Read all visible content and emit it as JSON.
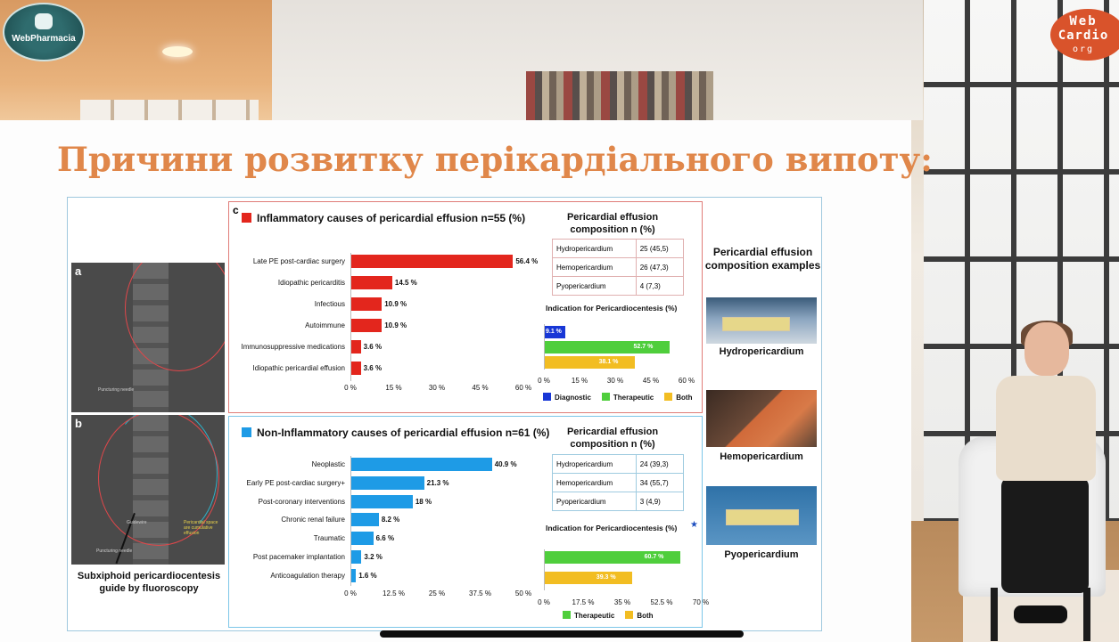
{
  "logos": {
    "left": "WebPharmacia",
    "right_line1": "Web",
    "right_line2": "Cardio",
    "right_line3": "org"
  },
  "slide": {
    "title": "Причини розвитку перікардіального випоту:",
    "xray": {
      "label_a": "a",
      "label_b": "b",
      "note_a": "Puncturing needle",
      "note_b1": "Guidewire",
      "note_b2": "Puncturing needle",
      "note_b3": "Pericardial space are cumulative effusion",
      "caption": "Subxiphoid pericardiocentesis guide by fluoroscopy"
    },
    "examples": {
      "title": "Pericardial effusion composition examples",
      "items": [
        "Hydropericardium",
        "Hemopericardium",
        "Pyopericardium"
      ]
    }
  },
  "colors": {
    "inflammatory": "#e3261d",
    "non_inflammatory": "#1e9be6",
    "diagnostic": "#1837d6",
    "therapeutic": "#4fce3c",
    "both": "#f2bd22"
  },
  "chart_data": [
    {
      "type": "bar",
      "orientation": "horizontal",
      "panel_letter": "c",
      "title": "Inflammatory causes of pericardial effusion n=55 (%)",
      "categories": [
        "Late PE post-cardiac surgery",
        "Idiopathic pericarditis",
        "Infectious",
        "Autoimmune",
        "Immunosuppressive medications",
        "Idiopathic pericardial effusion"
      ],
      "values": [
        56.4,
        14.5,
        10.9,
        10.9,
        3.6,
        3.6
      ],
      "value_labels": [
        "56.4 %",
        "14.5 %",
        "10.9 %",
        "10.9 %",
        "3.6 %",
        "3.6 %"
      ],
      "xlim": [
        0,
        60
      ],
      "ticks": [
        "0 %",
        "15 %",
        "30 %",
        "45 %",
        "60 %"
      ]
    },
    {
      "type": "table",
      "title": "Pericardial effusion composition n (%)",
      "rows": [
        [
          "Hydropericardium",
          "25 (45,5)"
        ],
        [
          "Hemopericardium",
          "26 (47,3)"
        ],
        [
          "Pyopericardium",
          "4 (7,3)"
        ]
      ]
    },
    {
      "type": "bar",
      "orientation": "horizontal",
      "title": "Indication for Pericardiocentesis (%)",
      "series": [
        {
          "name": "Diagnostic",
          "values": [
            9.1
          ],
          "label": "9.1 %"
        },
        {
          "name": "Therapeutic",
          "values": [
            52.7
          ],
          "label": "52.7 %"
        },
        {
          "name": "Both",
          "values": [
            38.1
          ],
          "label": "38.1 %"
        }
      ],
      "xlim": [
        0,
        60
      ],
      "ticks": [
        "0 %",
        "15 %",
        "30 %",
        "45 %",
        "60 %"
      ]
    },
    {
      "type": "bar",
      "orientation": "horizontal",
      "title": "Non-Inflammatory causes of pericardial effusion n=61 (%)",
      "categories": [
        "Neoplastic",
        "Early PE post-cardiac surgery+",
        "Post-coronary interventions",
        "Chronic renal failure",
        "Traumatic",
        "Post pacemaker implantation",
        "Anticoagulation therapy"
      ],
      "values": [
        40.9,
        21.3,
        18,
        8.2,
        6.6,
        3.2,
        1.6
      ],
      "value_labels": [
        "40.9 %",
        "21.3 %",
        "18 %",
        "8.2 %",
        "6.6 %",
        "3.2 %",
        "1.6 %"
      ],
      "xlim": [
        0,
        50
      ],
      "ticks": [
        "0 %",
        "12.5 %",
        "25 %",
        "37.5 %",
        "50 %"
      ]
    },
    {
      "type": "table",
      "title": "Pericardial effusion composition n (%)",
      "rows": [
        [
          "Hydropericardium",
          "24 (39,3)"
        ],
        [
          "Hemopericardium",
          "34 (55,7)"
        ],
        [
          "Pyopericardium",
          "3 (4,9)"
        ]
      ]
    },
    {
      "type": "bar",
      "orientation": "horizontal",
      "title": "Indication for Pericardiocentesis (%)",
      "series": [
        {
          "name": "Therapeutic",
          "values": [
            60.7
          ],
          "label": "60.7 %"
        },
        {
          "name": "Both",
          "values": [
            39.3
          ],
          "label": "39.3 %"
        }
      ],
      "xlim": [
        0,
        70
      ],
      "ticks": [
        "0 %",
        "17.5 %",
        "35 %",
        "52.5 %",
        "70 %"
      ]
    }
  ]
}
